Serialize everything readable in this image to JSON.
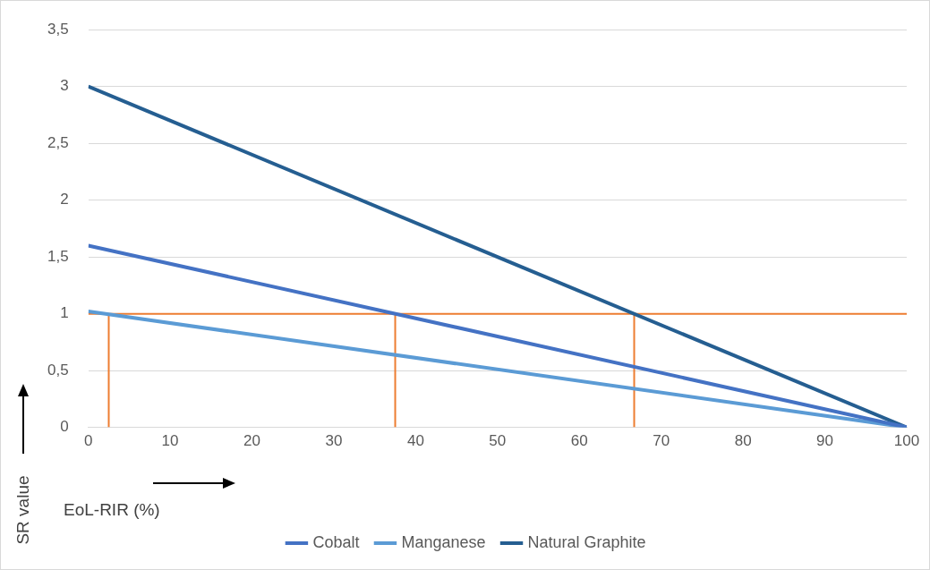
{
  "chart_data": {
    "type": "line",
    "xlabel": "EoL-RIR (%)",
    "ylabel": "SR value",
    "xlim": [
      0,
      100
    ],
    "xticks": [
      0,
      10,
      20,
      30,
      40,
      50,
      60,
      70,
      80,
      90,
      100
    ],
    "ylim": [
      0,
      3.5
    ],
    "yticks": [
      0,
      {
        "value": 0.5,
        "label": "0,5"
      },
      1,
      {
        "value": 1.5,
        "label": "1,5"
      },
      2,
      {
        "value": 2.5,
        "label": "2,5"
      },
      3,
      {
        "value": 3.5,
        "label": "3,5"
      }
    ],
    "grid": "y",
    "legend": "bottom",
    "marker": "none",
    "line_style": "solid",
    "series": [
      {
        "name": "Cobalt",
        "color": "#4472c4",
        "x": [
          0,
          100
        ],
        "values": [
          1.6,
          0
        ]
      },
      {
        "name": "Manganese",
        "color": "#5b9bd5",
        "x": [
          0,
          100
        ],
        "values": [
          1.02,
          0
        ]
      },
      {
        "name": "Natural Graphite",
        "color": "#255e91",
        "x": [
          0,
          100
        ],
        "values": [
          3,
          0
        ]
      },
      {
        "color": "#ed7d31",
        "x": [
          0,
          100
        ],
        "values": [
          1,
          1
        ]
      },
      {
        "color": "#ed7d31",
        "x": [
          2.5,
          2.5
        ],
        "values": [
          0,
          1
        ]
      },
      {
        "color": "#ed7d31",
        "x": [
          37.5,
          37.5
        ],
        "values": [
          0,
          1
        ]
      },
      {
        "color": "#ed7d31",
        "x": [
          66.7,
          66.7
        ],
        "values": [
          0,
          1
        ]
      }
    ]
  }
}
